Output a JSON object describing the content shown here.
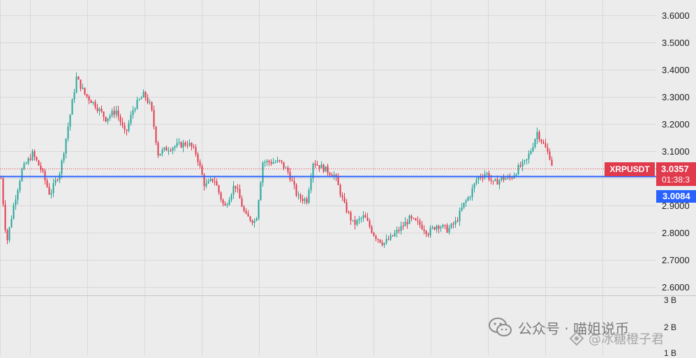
{
  "chart_data": {
    "type": "candlestick",
    "symbol": "XRPUSDT",
    "y_ticks": [
      "3.6000",
      "3.5000",
      "3.4000",
      "3.3000",
      "3.2000",
      "3.1000",
      "2.9000",
      "2.8000",
      "2.7000",
      "2.6000"
    ],
    "ylim": [
      2.595,
      3.645
    ],
    "last_price": "3.0357",
    "last_price_value": 3.0357,
    "countdown": "01:38:3",
    "horizontal_line_label": "3.0084",
    "horizontal_line_value": 3.0084,
    "volume_axis_labels": [
      "3 B",
      "2 B",
      "1 B"
    ],
    "price_path": [
      [
        0,
        3.0
      ],
      [
        8,
        2.76
      ],
      [
        18,
        2.9
      ],
      [
        30,
        3.03
      ],
      [
        45,
        3.09
      ],
      [
        58,
        3.03
      ],
      [
        70,
        2.94
      ],
      [
        85,
        3.03
      ],
      [
        100,
        3.25
      ],
      [
        108,
        3.37
      ],
      [
        120,
        3.31
      ],
      [
        135,
        3.27
      ],
      [
        150,
        3.22
      ],
      [
        165,
        3.25
      ],
      [
        178,
        3.16
      ],
      [
        190,
        3.26
      ],
      [
        205,
        3.31
      ],
      [
        215,
        3.26
      ],
      [
        225,
        3.09
      ],
      [
        238,
        3.11
      ],
      [
        252,
        3.12
      ],
      [
        268,
        3.13
      ],
      [
        280,
        3.09
      ],
      [
        292,
        2.97
      ],
      [
        305,
        3.0
      ],
      [
        320,
        2.89
      ],
      [
        335,
        2.98
      ],
      [
        350,
        2.86
      ],
      [
        365,
        2.84
      ],
      [
        375,
        3.06
      ],
      [
        390,
        3.06
      ],
      [
        400,
        3.06
      ],
      [
        412,
        3.02
      ],
      [
        425,
        2.93
      ],
      [
        438,
        2.92
      ],
      [
        447,
        3.06
      ],
      [
        460,
        3.04
      ],
      [
        478,
        3.01
      ],
      [
        492,
        2.9
      ],
      [
        505,
        2.83
      ],
      [
        520,
        2.86
      ],
      [
        535,
        2.79
      ],
      [
        548,
        2.76
      ],
      [
        558,
        2.78
      ],
      [
        570,
        2.81
      ],
      [
        585,
        2.85
      ],
      [
        600,
        2.83
      ],
      [
        612,
        2.8
      ],
      [
        625,
        2.83
      ],
      [
        640,
        2.81
      ],
      [
        652,
        2.84
      ],
      [
        662,
        2.9
      ],
      [
        672,
        2.94
      ],
      [
        682,
        3.0
      ],
      [
        695,
        3.02
      ],
      [
        705,
        2.98
      ],
      [
        718,
        3.0
      ],
      [
        730,
        3.0
      ],
      [
        742,
        3.04
      ],
      [
        752,
        3.06
      ],
      [
        760,
        3.11
      ],
      [
        768,
        3.17
      ],
      [
        778,
        3.12
      ],
      [
        788,
        3.07
      ],
      [
        790,
        3.0357
      ]
    ]
  },
  "symbol_label": "XRPUSDT",
  "price_label": "3.0357",
  "timer_label": "01:38:3",
  "line_label": "3.0084",
  "watermark": {
    "line1": "公众号 · 喵姐说币",
    "line2": "@冰糖橙子君"
  },
  "colors": {
    "up": "#26a69a",
    "down": "#e03a4c",
    "hline": "#2962ff",
    "grid": "#d9d9d9",
    "bg": "#ececec"
  }
}
